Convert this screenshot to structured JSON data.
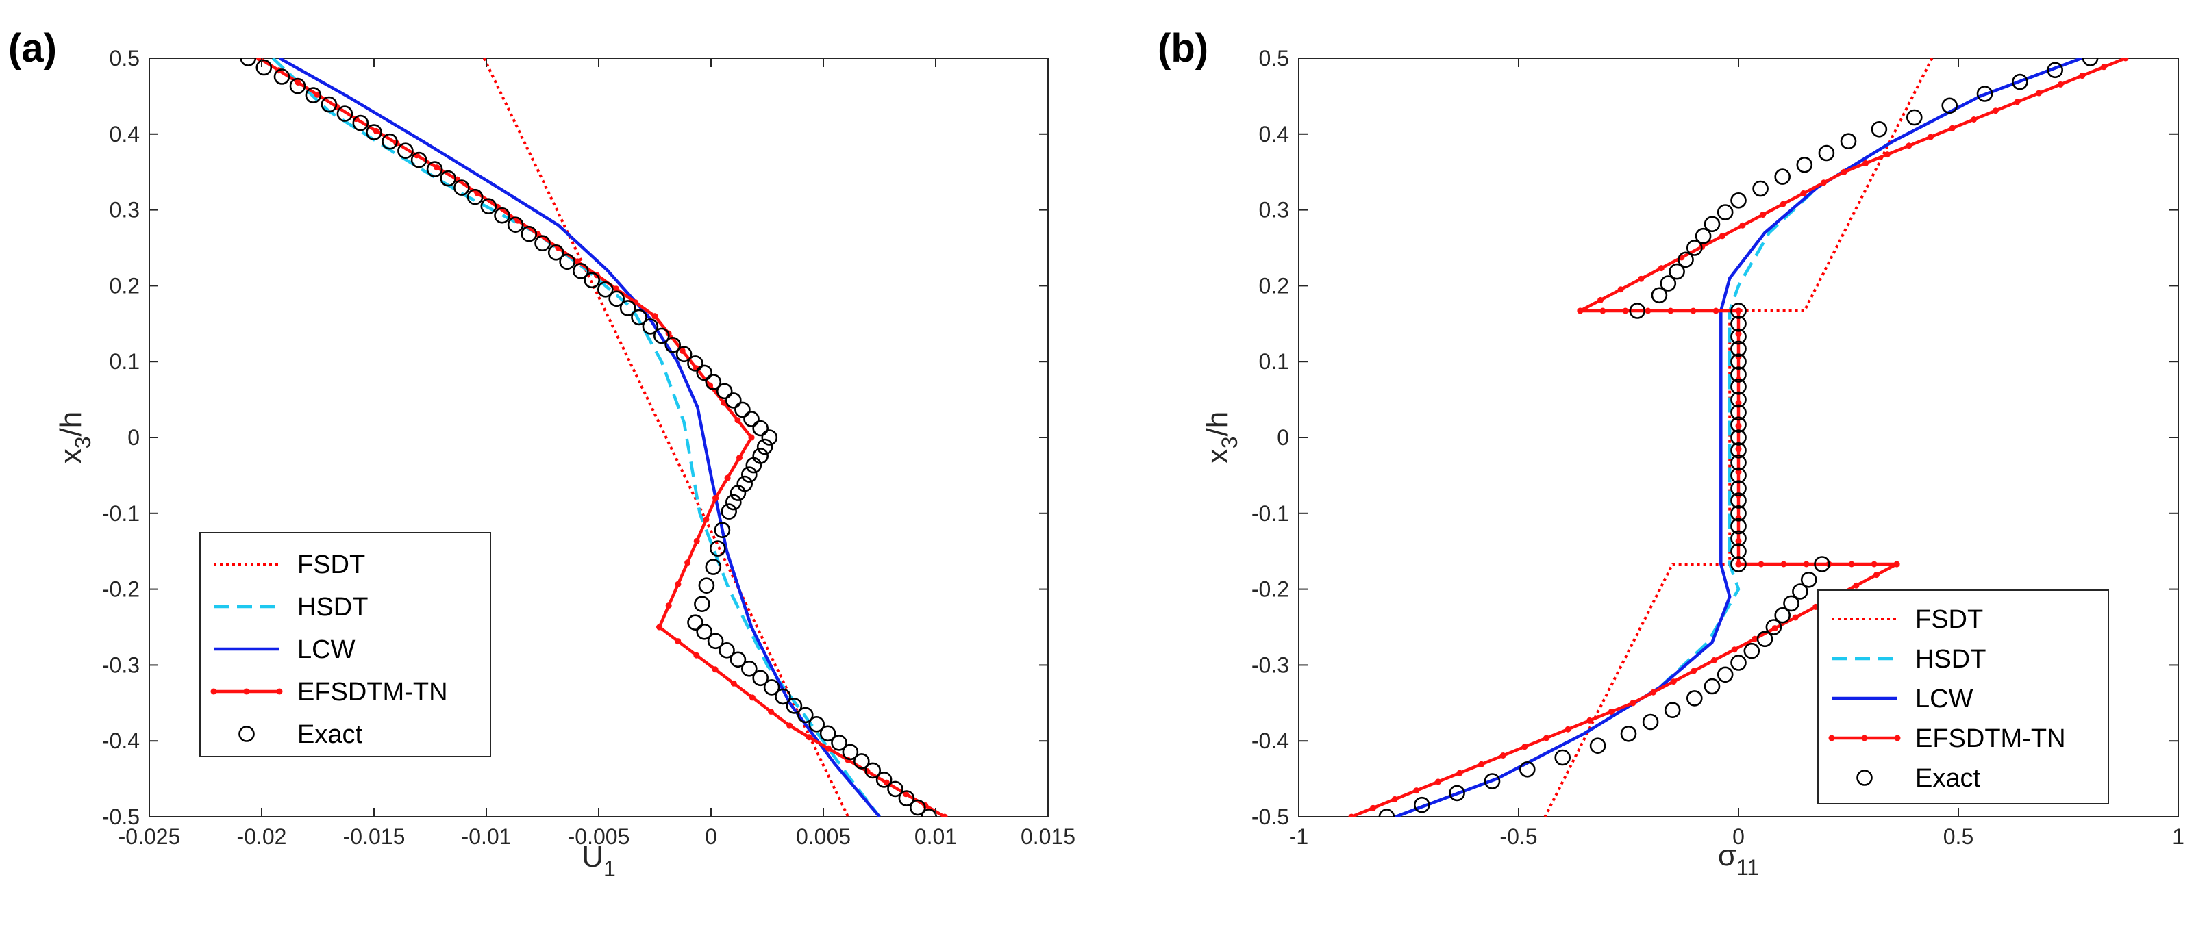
{
  "colors": {
    "fsdt": "#ff0000",
    "hsdt": "#1ec8f0",
    "lcw": "#1020e8",
    "efsdtm": "#ff1010",
    "exact": "#000000",
    "axis": "#262626"
  },
  "chart_data": [
    {
      "type": "line",
      "panel_label": "(a)",
      "xlabel": "U",
      "xlabel_sub": "1",
      "ylabel": "x",
      "ylabel_sub": "3",
      "ylabel_tail": "/h",
      "xlim": [
        -0.025,
        0.015
      ],
      "ylim": [
        -0.5,
        0.5
      ],
      "x_ticks": [
        -0.025,
        -0.02,
        -0.015,
        -0.01,
        -0.005,
        0,
        0.005,
        0.01,
        0.015
      ],
      "x_tick_labels": [
        "-0.025",
        "-0.02",
        "-0.015",
        "-0.01",
        "-0.005",
        "0",
        "0.005",
        "0.01",
        "0.015"
      ],
      "y_ticks": [
        -0.5,
        -0.4,
        -0.3,
        -0.2,
        -0.1,
        0,
        0.1,
        0.2,
        0.3,
        0.4,
        0.5
      ],
      "y_tick_labels": [
        "-0.5",
        "-0.4",
        "-0.3",
        "-0.2",
        "-0.1",
        "0",
        "0.1",
        "0.2",
        "0.3",
        "0.4",
        "0.5"
      ],
      "legend_position": "bottom-left",
      "series": [
        {
          "name": "FSDT",
          "style": "dotted",
          "points": [
            [
              -0.0101,
              0.5
            ],
            [
              0.0061,
              -0.5
            ]
          ]
        },
        {
          "name": "HSDT",
          "style": "dashed",
          "points": [
            [
              -0.0195,
              0.5
            ],
            [
              -0.017,
              0.43
            ],
            [
              -0.0138,
              0.37
            ],
            [
              -0.011,
              0.32
            ],
            [
              -0.0078,
              0.27
            ],
            [
              -0.0055,
              0.22
            ],
            [
              -0.0035,
              0.17
            ],
            [
              -0.0022,
              0.1
            ],
            [
              -0.0012,
              0.02
            ],
            [
              -0.0005,
              -0.1
            ],
            [
              0.0008,
              -0.2
            ],
            [
              0.0025,
              -0.3
            ],
            [
              0.0045,
              -0.38
            ],
            [
              0.0062,
              -0.45
            ],
            [
              0.0075,
              -0.5
            ]
          ]
        },
        {
          "name": "LCW",
          "style": "solid",
          "points": [
            [
              -0.0192,
              0.5
            ],
            [
              -0.0162,
              0.45
            ],
            [
              -0.0128,
              0.39
            ],
            [
              -0.0095,
              0.33
            ],
            [
              -0.0068,
              0.28
            ],
            [
              -0.0046,
              0.22
            ],
            [
              -0.0028,
              0.16
            ],
            [
              -0.0015,
              0.1
            ],
            [
              -0.0006,
              0.04
            ],
            [
              0.0,
              -0.05
            ],
            [
              0.0007,
              -0.15
            ],
            [
              0.0018,
              -0.25
            ],
            [
              0.0035,
              -0.35
            ],
            [
              0.0055,
              -0.43
            ],
            [
              0.0075,
              -0.5
            ]
          ]
        },
        {
          "name": "EFSDTM-TN",
          "style": "solid-dot",
          "points": [
            [
              -0.0201,
              0.5
            ],
            [
              -0.0158,
              0.42
            ],
            [
              -0.0113,
              0.34
            ],
            [
              -0.0068,
              0.25
            ],
            [
              -0.0025,
              0.16
            ],
            [
              0.0018,
              0.0
            ],
            [
              0.0002,
              -0.08
            ],
            [
              -0.0023,
              -0.25
            ],
            [
              0.0035,
              -0.38
            ],
            [
              0.0104,
              -0.5
            ]
          ]
        },
        {
          "name": "Exact",
          "style": "circles",
          "points": [
            [
              -0.0206,
              0.5
            ],
            [
              -0.0199,
              0.4878
            ],
            [
              -0.0191,
              0.4756
            ],
            [
              -0.0184,
              0.4634
            ],
            [
              -0.0177,
              0.4512
            ],
            [
              -0.017,
              0.439
            ],
            [
              -0.0163,
              0.4268
            ],
            [
              -0.0156,
              0.4146
            ],
            [
              -0.015,
              0.4024
            ],
            [
              -0.0143,
              0.3902
            ],
            [
              -0.0136,
              0.378
            ],
            [
              -0.013,
              0.3659
            ],
            [
              -0.0123,
              0.3537
            ],
            [
              -0.0117,
              0.3415
            ],
            [
              -0.0111,
              0.3293
            ],
            [
              -0.0105,
              0.3171
            ],
            [
              -0.0099,
              0.3049
            ],
            [
              -0.0093,
              0.2927
            ],
            [
              -0.0087,
              0.2805
            ],
            [
              -0.0081,
              0.2683
            ],
            [
              -0.0075,
              0.2561
            ],
            [
              -0.0069,
              0.2439
            ],
            [
              -0.0064,
              0.2317
            ],
            [
              -0.0058,
              0.2195
            ],
            [
              -0.0053,
              0.2073
            ],
            [
              -0.0047,
              0.1951
            ],
            [
              -0.0042,
              0.1829
            ],
            [
              -0.0037,
              0.1707
            ],
            [
              -0.0032,
              0.1585
            ],
            [
              -0.0027,
              0.1463
            ],
            [
              -0.0022,
              0.1341
            ],
            [
              -0.0017,
              0.122
            ],
            [
              -0.0012,
              0.1098
            ],
            [
              -0.0007,
              0.0976
            ],
            [
              -0.0003,
              0.0854
            ],
            [
              0.0001,
              0.0732
            ],
            [
              0.0006,
              0.061
            ],
            [
              0.001,
              0.0488
            ],
            [
              0.0014,
              0.0366
            ],
            [
              0.0018,
              0.0244
            ],
            [
              0.0022,
              0.0122
            ],
            [
              0.0026,
              0.0
            ],
            [
              0.0024,
              -0.0122
            ],
            [
              0.0022,
              -0.0244
            ],
            [
              0.0019,
              -0.0366
            ],
            [
              0.0017,
              -0.0488
            ],
            [
              0.0015,
              -0.061
            ],
            [
              0.0012,
              -0.0732
            ],
            [
              0.001,
              -0.0854
            ],
            [
              0.0008,
              -0.0976
            ],
            [
              0.0005,
              -0.122
            ],
            [
              0.0003,
              -0.1463
            ],
            [
              0.0001,
              -0.1707
            ],
            [
              -0.0002,
              -0.1951
            ],
            [
              -0.0004,
              -0.2195
            ],
            [
              -0.0007,
              -0.2439
            ],
            [
              -0.0003,
              -0.2561
            ],
            [
              0.0002,
              -0.2683
            ],
            [
              0.0007,
              -0.2805
            ],
            [
              0.0012,
              -0.2927
            ],
            [
              0.0017,
              -0.3049
            ],
            [
              0.0022,
              -0.3171
            ],
            [
              0.0027,
              -0.3293
            ],
            [
              0.0032,
              -0.3415
            ],
            [
              0.0037,
              -0.3537
            ],
            [
              0.0042,
              -0.3659
            ],
            [
              0.0047,
              -0.378
            ],
            [
              0.0052,
              -0.3902
            ],
            [
              0.0057,
              -0.4024
            ],
            [
              0.0062,
              -0.4146
            ],
            [
              0.0067,
              -0.4268
            ],
            [
              0.0072,
              -0.439
            ],
            [
              0.0077,
              -0.4512
            ],
            [
              0.0082,
              -0.4634
            ],
            [
              0.0087,
              -0.4756
            ],
            [
              0.0092,
              -0.4878
            ],
            [
              0.0097,
              -0.5
            ]
          ]
        }
      ]
    },
    {
      "type": "line",
      "panel_label": "(b)",
      "xlabel": "σ",
      "xlabel_sub": "11",
      "ylabel": "x",
      "ylabel_sub": "3",
      "ylabel_tail": "/h",
      "xlim": [
        -1,
        1
      ],
      "ylim": [
        -0.5,
        0.5
      ],
      "x_ticks": [
        -1,
        -0.5,
        0,
        0.5,
        1
      ],
      "x_tick_labels": [
        "-1",
        "-0.5",
        "0",
        "0.5",
        "1"
      ],
      "y_ticks": [
        -0.5,
        -0.4,
        -0.3,
        -0.2,
        -0.1,
        0,
        0.1,
        0.2,
        0.3,
        0.4,
        0.5
      ],
      "y_tick_labels": [
        "-0.5",
        "-0.4",
        "-0.3",
        "-0.2",
        "-0.1",
        "0",
        "0.1",
        "0.2",
        "0.3",
        "0.4",
        "0.5"
      ],
      "legend_position": "bottom-right",
      "series": [
        {
          "name": "FSDT",
          "style": "dotted",
          "points": [
            [
              0.44,
              0.5
            ],
            [
              0.15,
              0.167
            ],
            [
              -0.02,
              0.167
            ],
            [
              -0.02,
              -0.167
            ],
            [
              -0.15,
              -0.167
            ],
            [
              -0.44,
              -0.5
            ]
          ]
        },
        {
          "name": "HSDT",
          "style": "dashed",
          "points": [
            [
              0.78,
              0.5
            ],
            [
              0.55,
              0.45
            ],
            [
              0.35,
              0.39
            ],
            [
              0.18,
              0.33
            ],
            [
              0.07,
              0.27
            ],
            [
              0.0,
              0.2
            ],
            [
              -0.02,
              0.167
            ],
            [
              -0.02,
              -0.167
            ],
            [
              0.0,
              -0.2
            ],
            [
              -0.07,
              -0.27
            ],
            [
              -0.18,
              -0.33
            ],
            [
              -0.35,
              -0.39
            ],
            [
              -0.55,
              -0.45
            ],
            [
              -0.78,
              -0.5
            ]
          ]
        },
        {
          "name": "LCW",
          "style": "solid",
          "points": [
            [
              0.78,
              0.5
            ],
            [
              0.55,
              0.45
            ],
            [
              0.35,
              0.39
            ],
            [
              0.18,
              0.33
            ],
            [
              0.06,
              0.27
            ],
            [
              -0.02,
              0.21
            ],
            [
              -0.04,
              0.167
            ],
            [
              -0.04,
              -0.167
            ],
            [
              -0.02,
              -0.21
            ],
            [
              -0.06,
              -0.27
            ],
            [
              -0.18,
              -0.33
            ],
            [
              -0.35,
              -0.39
            ],
            [
              -0.55,
              -0.45
            ],
            [
              -0.78,
              -0.5
            ]
          ]
        },
        {
          "name": "EFSDTM-TN",
          "style": "solid-dot",
          "points": [
            [
              0.88,
              0.5
            ],
            [
              0.24,
              0.35
            ],
            [
              -0.36,
              0.167
            ],
            [
              0.0,
              0.167
            ],
            [
              0.0,
              -0.167
            ],
            [
              0.36,
              -0.167
            ],
            [
              -0.24,
              -0.35
            ],
            [
              -0.88,
              -0.5
            ]
          ]
        },
        {
          "name": "Exact",
          "style": "circles",
          "points": [
            [
              0.8,
              0.5
            ],
            [
              0.72,
              0.4844
            ],
            [
              0.64,
              0.4688
            ],
            [
              0.56,
              0.4531
            ],
            [
              0.48,
              0.4375
            ],
            [
              0.4,
              0.4219
            ],
            [
              0.32,
              0.4063
            ],
            [
              0.25,
              0.3906
            ],
            [
              0.2,
              0.375
            ],
            [
              0.15,
              0.3594
            ],
            [
              0.1,
              0.3438
            ],
            [
              0.05,
              0.3281
            ],
            [
              0.0,
              0.3125
            ],
            [
              -0.03,
              0.2969
            ],
            [
              -0.06,
              0.2813
            ],
            [
              -0.08,
              0.2656
            ],
            [
              -0.1,
              0.25
            ],
            [
              -0.12,
              0.2344
            ],
            [
              -0.14,
              0.2188
            ],
            [
              -0.16,
              0.2031
            ],
            [
              -0.18,
              0.1875
            ],
            [
              -0.23,
              0.167
            ],
            [
              0.0,
              0.167
            ],
            [
              0.0,
              0.15
            ],
            [
              0.0,
              0.133
            ],
            [
              0.0,
              0.117
            ],
            [
              0.0,
              0.1
            ],
            [
              0.0,
              0.083
            ],
            [
              0.0,
              0.067
            ],
            [
              0.0,
              0.05
            ],
            [
              0.0,
              0.033
            ],
            [
              0.0,
              0.017
            ],
            [
              0.0,
              0.0
            ],
            [
              0.0,
              -0.017
            ],
            [
              0.0,
              -0.033
            ],
            [
              0.0,
              -0.05
            ],
            [
              0.0,
              -0.067
            ],
            [
              0.0,
              -0.083
            ],
            [
              0.0,
              -0.1
            ],
            [
              0.0,
              -0.117
            ],
            [
              0.0,
              -0.133
            ],
            [
              0.0,
              -0.15
            ],
            [
              0.0,
              -0.167
            ],
            [
              0.19,
              -0.167
            ],
            [
              0.16,
              -0.1875
            ],
            [
              0.14,
              -0.2031
            ],
            [
              0.12,
              -0.2188
            ],
            [
              0.1,
              -0.2344
            ],
            [
              0.08,
              -0.25
            ],
            [
              0.06,
              -0.2656
            ],
            [
              0.03,
              -0.2813
            ],
            [
              0.0,
              -0.2969
            ],
            [
              -0.03,
              -0.3125
            ],
            [
              -0.06,
              -0.3281
            ],
            [
              -0.1,
              -0.3438
            ],
            [
              -0.15,
              -0.3594
            ],
            [
              -0.2,
              -0.375
            ],
            [
              -0.25,
              -0.3906
            ],
            [
              -0.32,
              -0.4063
            ],
            [
              -0.4,
              -0.4219
            ],
            [
              -0.48,
              -0.4375
            ],
            [
              -0.56,
              -0.4531
            ],
            [
              -0.64,
              -0.4688
            ],
            [
              -0.72,
              -0.4844
            ],
            [
              -0.8,
              -0.5
            ]
          ]
        }
      ]
    }
  ]
}
